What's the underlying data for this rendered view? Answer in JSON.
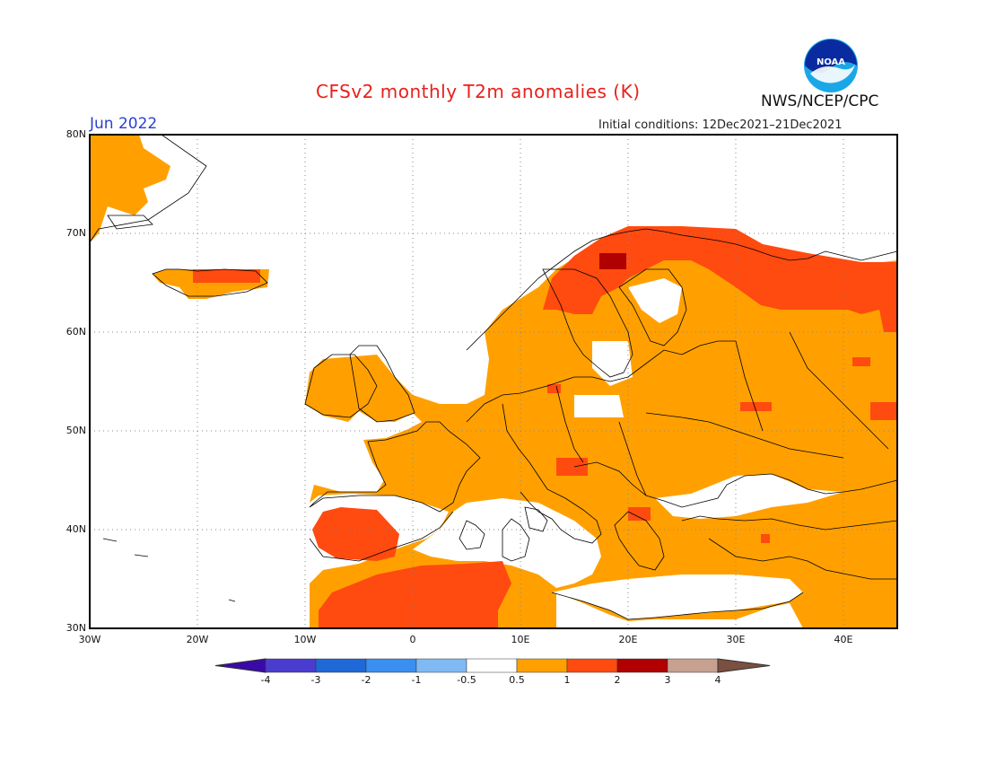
{
  "header": {
    "title": "CFSv2 monthly T2m anomalies (K)",
    "month": "Jun 2022",
    "initial_conditions": "Initial conditions: 12Dec2021–21Dec2021",
    "organization": "NWS/NCEP/CPC",
    "logo_text": "NOAA"
  },
  "axes": {
    "lat_labels": [
      "80N",
      "70N",
      "60N",
      "50N",
      "40N",
      "30N"
    ],
    "lon_labels": [
      "30W",
      "20W",
      "10W",
      "0",
      "10E",
      "20E",
      "30E",
      "40E"
    ]
  },
  "legend": {
    "tick_labels": [
      "-4",
      "-3",
      "-2",
      "-1",
      "-0.5",
      "0.5",
      "1",
      "2",
      "3",
      "4"
    ],
    "colors": [
      "#3a0aa8",
      "#4b3cd0",
      "#1e68d8",
      "#3a8ff0",
      "#7fbaf5",
      "#ffffff",
      "#ffa000",
      "#ff4a10",
      "#b00000",
      "#c8a090",
      "#7a5040"
    ]
  },
  "map": {
    "anomaly_colors": {
      "above_0_5": "#ffa000",
      "above_1": "#ff4a10",
      "above_2": "#b00000"
    },
    "ocean_color": "#ffffff",
    "coastline_color": "#000000"
  }
}
